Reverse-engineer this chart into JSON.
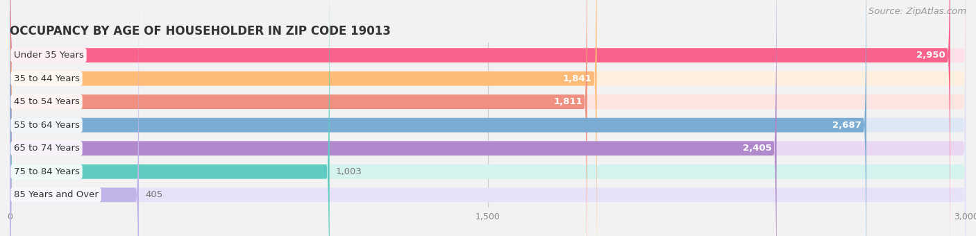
{
  "title": "OCCUPANCY BY AGE OF HOUSEHOLDER IN ZIP CODE 19013",
  "source": "Source: ZipAtlas.com",
  "categories": [
    "Under 35 Years",
    "35 to 44 Years",
    "45 to 54 Years",
    "55 to 64 Years",
    "65 to 74 Years",
    "75 to 84 Years",
    "85 Years and Over"
  ],
  "values": [
    2950,
    1841,
    1811,
    2687,
    2405,
    1003,
    405
  ],
  "bar_colors": [
    "#F9628A",
    "#FFBB77",
    "#F09080",
    "#7BACD4",
    "#B088CC",
    "#5ECCC0",
    "#C0B4E8"
  ],
  "bar_bg_colors": [
    "#FDE0E8",
    "#FEF0DE",
    "#FCE4E0",
    "#DEE8F4",
    "#EAD8F2",
    "#D4F2EE",
    "#E8E2F8"
  ],
  "xlim": [
    0,
    3000
  ],
  "xticks": [
    0,
    1500,
    3000
  ],
  "background_color": "#F2F2F2",
  "title_fontsize": 12,
  "label_fontsize": 9.5,
  "value_fontsize": 9.5,
  "source_fontsize": 9.5
}
